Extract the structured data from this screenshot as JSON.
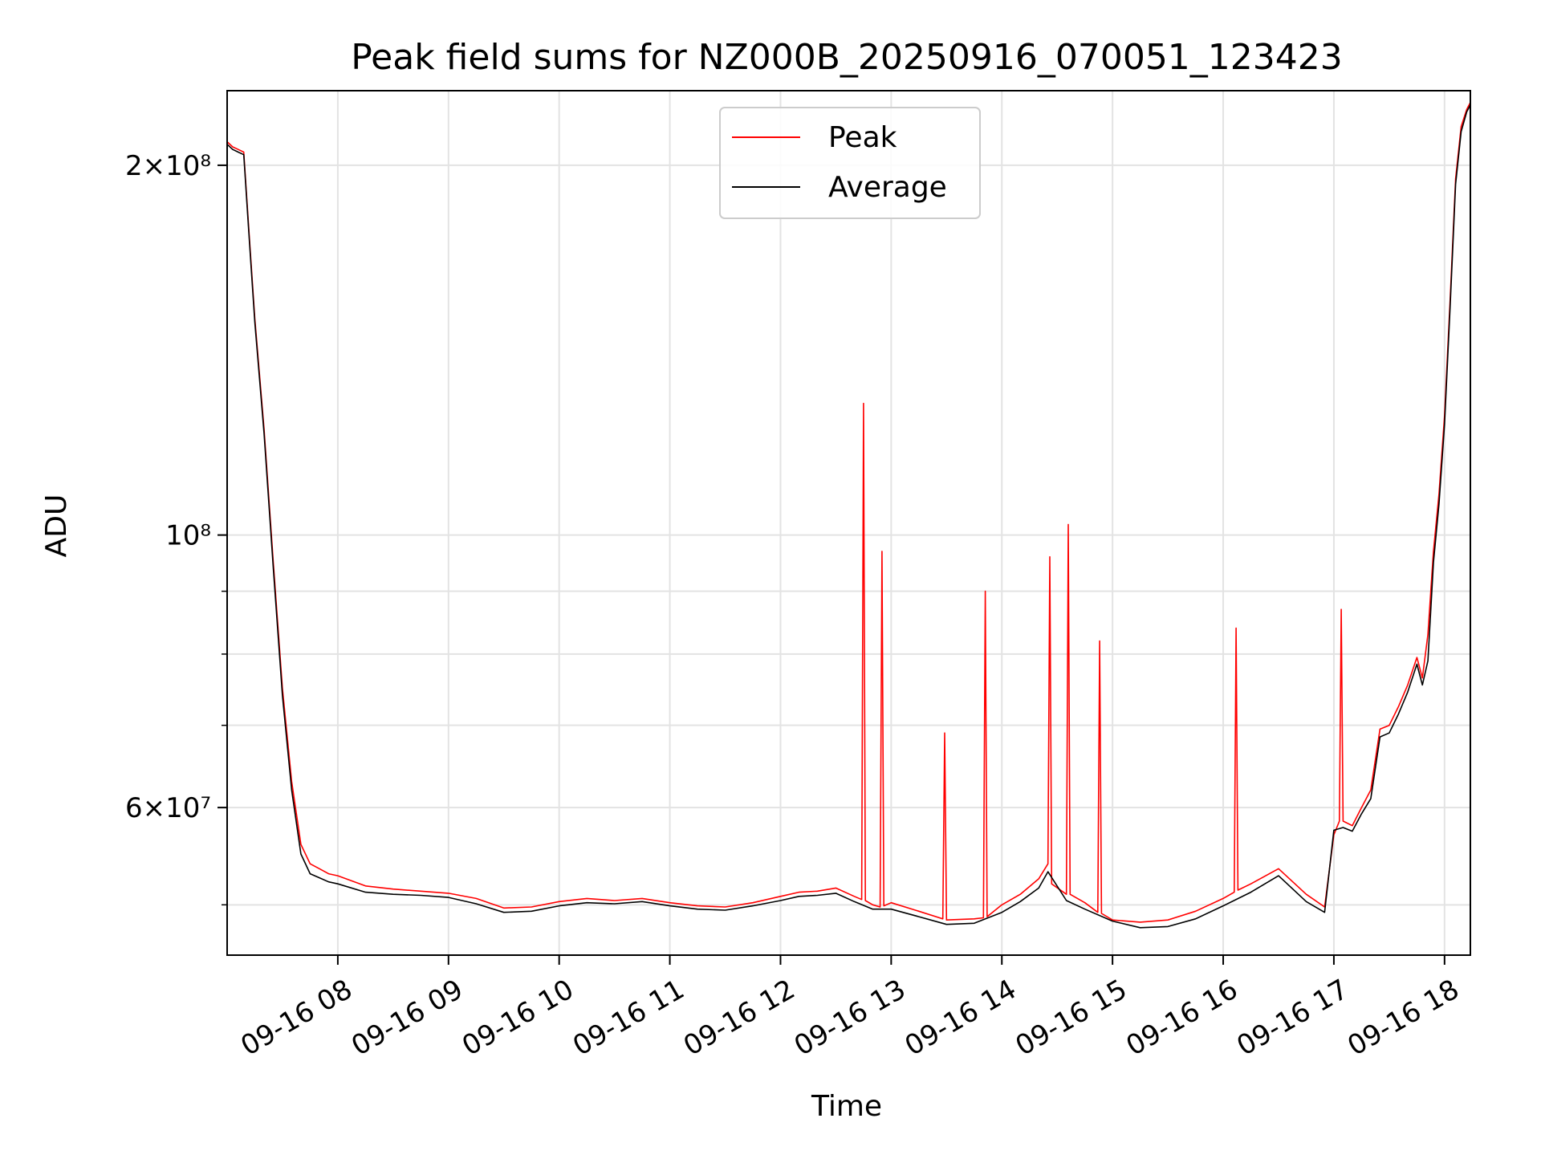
{
  "chart_data": {
    "type": "line",
    "title": "Peak field sums for NZ000B_20250916_070051_123423",
    "xlabel": "Time",
    "ylabel": "ADU",
    "y_scale": "log",
    "grid": true,
    "legend_position": "top-center",
    "xlim": [
      "09-16 07:00",
      "09-16 18:14"
    ],
    "ylim": [
      45500000,
      230000000
    ],
    "x_ticks": [
      "09-16 08",
      "09-16 09",
      "09-16 10",
      "09-16 11",
      "09-16 12",
      "09-16 13",
      "09-16 14",
      "09-16 15",
      "09-16 16",
      "09-16 17",
      "09-16 18"
    ],
    "y_ticks": [
      {
        "value": 200000000,
        "label": "2×10⁸"
      },
      {
        "value": 100000000,
        "label": "10⁸"
      },
      {
        "value": 60000000,
        "label": "6×10⁷"
      }
    ],
    "series": [
      {
        "name": "Peak",
        "color": "#ff0000",
        "x": [
          "09-16 07:00",
          "09-16 07:03",
          "09-16 07:06",
          "09-16 07:09",
          "09-16 07:12",
          "09-16 07:15",
          "09-16 07:20",
          "09-16 07:25",
          "09-16 07:30",
          "09-16 07:35",
          "09-16 07:40",
          "09-16 07:45",
          "09-16 07:50",
          "09-16 07:55",
          "09-16 08:00",
          "09-16 08:15",
          "09-16 08:30",
          "09-16 08:45",
          "09-16 09:00",
          "09-16 09:15",
          "09-16 09:30",
          "09-16 09:45",
          "09-16 10:00",
          "09-16 10:15",
          "09-16 10:30",
          "09-16 10:45",
          "09-16 11:00",
          "09-16 11:15",
          "09-16 11:30",
          "09-16 11:45",
          "09-16 12:00",
          "09-16 12:10",
          "09-16 12:20",
          "09-16 12:30",
          "09-16 12:40",
          "09-16 12:44",
          "09-16 12:45",
          "09-16 12:46",
          "09-16 12:50",
          "09-16 12:54",
          "09-16 12:55",
          "09-16 12:56",
          "09-16 13:00",
          "09-16 13:15",
          "09-16 13:28",
          "09-16 13:29",
          "09-16 13:30",
          "09-16 13:45",
          "09-16 13:50",
          "09-16 13:51",
          "09-16 13:52",
          "09-16 14:00",
          "09-16 14:10",
          "09-16 14:20",
          "09-16 14:25",
          "09-16 14:26",
          "09-16 14:27",
          "09-16 14:35",
          "09-16 14:36",
          "09-16 14:37",
          "09-16 14:45",
          "09-16 14:52",
          "09-16 14:53",
          "09-16 14:54",
          "09-16 15:00",
          "09-16 15:15",
          "09-16 15:30",
          "09-16 15:45",
          "09-16 16:00",
          "09-16 16:06",
          "09-16 16:07",
          "09-16 16:08",
          "09-16 16:15",
          "09-16 16:30",
          "09-16 16:45",
          "09-16 16:55",
          "09-16 17:00",
          "09-16 17:03",
          "09-16 17:04",
          "09-16 17:05",
          "09-16 17:10",
          "09-16 17:15",
          "09-16 17:20",
          "09-16 17:25",
          "09-16 17:30",
          "09-16 17:35",
          "09-16 17:40",
          "09-16 17:45",
          "09-16 17:48",
          "09-16 17:51",
          "09-16 17:54",
          "09-16 17:57",
          "09-16 18:00",
          "09-16 18:03",
          "09-16 18:06",
          "09-16 18:09",
          "09-16 18:12",
          "09-16 18:14"
        ],
        "values": [
          209000000,
          207000000,
          206000000,
          205000000,
          175000000,
          150000000,
          122000000,
          95000000,
          75000000,
          63000000,
          56000000,
          54000000,
          53500000,
          53000000,
          52800000,
          51800000,
          51500000,
          51300000,
          51100000,
          50600000,
          49700000,
          49800000,
          50300000,
          50600000,
          50400000,
          50600000,
          50200000,
          49900000,
          49800000,
          50200000,
          50800000,
          51200000,
          51300000,
          51600000,
          50800000,
          50500000,
          128000000,
          50400000,
          50000000,
          49800000,
          97000000,
          49900000,
          50200000,
          49400000,
          48700000,
          69000000,
          48600000,
          48700000,
          48800000,
          90000000,
          48900000,
          50000000,
          51000000,
          52500000,
          54000000,
          96000000,
          52000000,
          51000000,
          102000000,
          51000000,
          50200000,
          49300000,
          82000000,
          49200000,
          48600000,
          48400000,
          48600000,
          49400000,
          50600000,
          51200000,
          84000000,
          51400000,
          52000000,
          53500000,
          51000000,
          49800000,
          57000000,
          58500000,
          87000000,
          58500000,
          58000000,
          60000000,
          62000000,
          69500000,
          70000000,
          72500000,
          75500000,
          79500000,
          76500000,
          83000000,
          97000000,
          108000000,
          125000000,
          155000000,
          195000000,
          215000000,
          222000000,
          225000000
        ]
      },
      {
        "name": "Average",
        "color": "#000000",
        "x": [
          "09-16 07:00",
          "09-16 07:03",
          "09-16 07:06",
          "09-16 07:09",
          "09-16 07:12",
          "09-16 07:15",
          "09-16 07:20",
          "09-16 07:25",
          "09-16 07:30",
          "09-16 07:35",
          "09-16 07:40",
          "09-16 07:45",
          "09-16 07:50",
          "09-16 07:55",
          "09-16 08:00",
          "09-16 08:15",
          "09-16 08:30",
          "09-16 08:45",
          "09-16 09:00",
          "09-16 09:15",
          "09-16 09:30",
          "09-16 09:45",
          "09-16 10:00",
          "09-16 10:15",
          "09-16 10:30",
          "09-16 10:45",
          "09-16 11:00",
          "09-16 11:15",
          "09-16 11:30",
          "09-16 11:45",
          "09-16 12:00",
          "09-16 12:10",
          "09-16 12:20",
          "09-16 12:30",
          "09-16 12:40",
          "09-16 12:50",
          "09-16 13:00",
          "09-16 13:15",
          "09-16 13:30",
          "09-16 13:45",
          "09-16 14:00",
          "09-16 14:10",
          "09-16 14:20",
          "09-16 14:25",
          "09-16 14:35",
          "09-16 14:45",
          "09-16 15:00",
          "09-16 15:15",
          "09-16 15:30",
          "09-16 15:45",
          "09-16 16:00",
          "09-16 16:15",
          "09-16 16:30",
          "09-16 16:45",
          "09-16 16:55",
          "09-16 17:00",
          "09-16 17:05",
          "09-16 17:10",
          "09-16 17:15",
          "09-16 17:20",
          "09-16 17:25",
          "09-16 17:30",
          "09-16 17:35",
          "09-16 17:40",
          "09-16 17:45",
          "09-16 17:48",
          "09-16 17:51",
          "09-16 17:54",
          "09-16 17:57",
          "09-16 18:00",
          "09-16 18:03",
          "09-16 18:06",
          "09-16 18:09",
          "09-16 18:12",
          "09-16 18:14"
        ],
        "values": [
          208000000,
          206000000,
          205000000,
          204000000,
          174000000,
          149000000,
          121000000,
          94000000,
          74000000,
          62000000,
          55000000,
          53000000,
          52600000,
          52200000,
          52000000,
          51200000,
          51000000,
          50900000,
          50700000,
          50100000,
          49300000,
          49400000,
          49900000,
          50200000,
          50100000,
          50300000,
          49900000,
          49600000,
          49500000,
          49900000,
          50400000,
          50800000,
          50900000,
          51100000,
          50300000,
          49600000,
          49600000,
          48900000,
          48200000,
          48300000,
          49300000,
          50300000,
          51600000,
          53200000,
          50400000,
          49600000,
          48500000,
          47900000,
          48000000,
          48700000,
          49900000,
          51200000,
          52800000,
          50300000,
          49300000,
          57500000,
          57800000,
          57400000,
          59300000,
          61000000,
          68500000,
          69000000,
          71500000,
          74500000,
          78500000,
          75500000,
          79000000,
          95000000,
          106000000,
          123000000,
          153000000,
          193000000,
          213000000,
          221000000,
          224000000
        ]
      }
    ]
  }
}
